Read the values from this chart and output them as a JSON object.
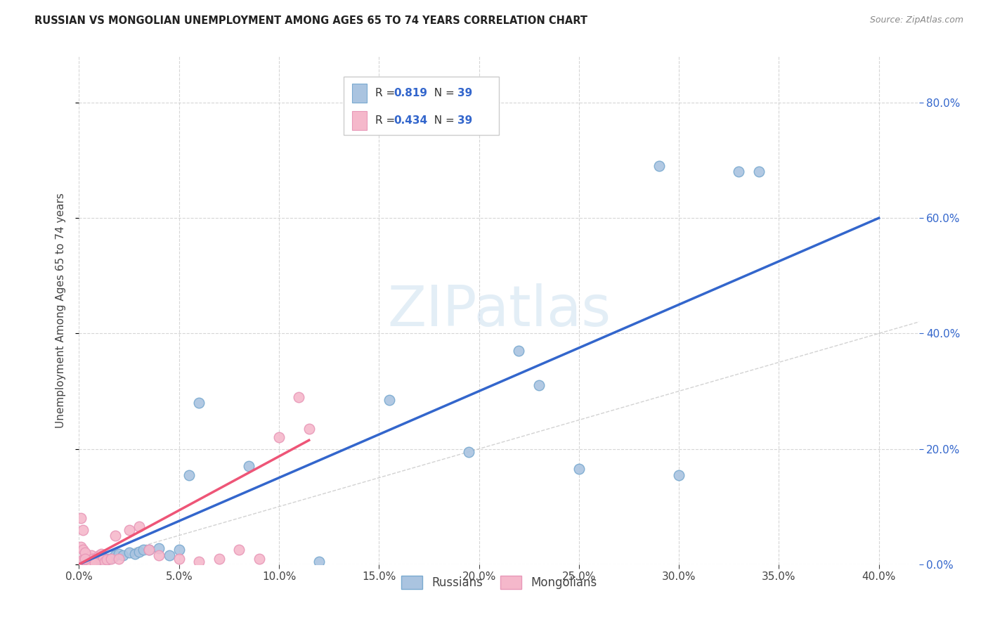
{
  "title": "RUSSIAN VS MONGOLIAN UNEMPLOYMENT AMONG AGES 65 TO 74 YEARS CORRELATION CHART",
  "source": "Source: ZipAtlas.com",
  "ylabel": "Unemployment Among Ages 65 to 74 years",
  "xlim": [
    0.0,
    0.42
  ],
  "ylim": [
    0.0,
    0.88
  ],
  "xticks": [
    0.0,
    0.05,
    0.1,
    0.15,
    0.2,
    0.25,
    0.3,
    0.35,
    0.4
  ],
  "yticks": [
    0.0,
    0.2,
    0.4,
    0.6,
    0.8
  ],
  "background_color": "#ffffff",
  "grid_color": "#cccccc",
  "watermark_text": "ZIPatlas",
  "legend_r_russian": "0.819",
  "legend_n_russian": "39",
  "legend_r_mongolian": "0.434",
  "legend_n_mongolian": "39",
  "russian_face_color": "#aac4e0",
  "russian_edge_color": "#7aaad0",
  "mongolian_face_color": "#f5b8cb",
  "mongolian_edge_color": "#e898b8",
  "russian_line_color": "#3366cc",
  "mongolian_line_color": "#ee5577",
  "diagonal_color": "#c0c0c0",
  "tick_color_blue": "#3366cc",
  "tick_color_dark": "#444444",
  "russian_scatter_x": [
    0.001,
    0.002,
    0.003,
    0.004,
    0.005,
    0.006,
    0.007,
    0.008,
    0.009,
    0.01,
    0.011,
    0.012,
    0.013,
    0.015,
    0.017,
    0.018,
    0.02,
    0.022,
    0.025,
    0.028,
    0.03,
    0.032,
    0.035,
    0.04,
    0.045,
    0.05,
    0.055,
    0.06,
    0.085,
    0.12,
    0.155,
    0.195,
    0.22,
    0.23,
    0.25,
    0.29,
    0.3,
    0.33,
    0.34
  ],
  "russian_scatter_y": [
    0.004,
    0.003,
    0.004,
    0.005,
    0.006,
    0.005,
    0.008,
    0.007,
    0.01,
    0.009,
    0.01,
    0.008,
    0.01,
    0.01,
    0.012,
    0.015,
    0.018,
    0.015,
    0.02,
    0.018,
    0.022,
    0.025,
    0.025,
    0.028,
    0.015,
    0.025,
    0.155,
    0.28,
    0.17,
    0.005,
    0.285,
    0.195,
    0.37,
    0.31,
    0.165,
    0.69,
    0.155,
    0.68,
    0.68
  ],
  "mongolian_scatter_x": [
    0.001,
    0.002,
    0.003,
    0.004,
    0.005,
    0.006,
    0.007,
    0.008,
    0.009,
    0.01,
    0.011,
    0.012,
    0.013,
    0.014,
    0.016,
    0.018,
    0.02,
    0.025,
    0.03,
    0.035,
    0.04,
    0.05,
    0.06,
    0.07,
    0.08,
    0.09,
    0.1,
    0.11,
    0.115,
    0.001,
    0.002,
    0.003,
    0.004,
    0.005,
    0.006,
    0.008,
    0.001,
    0.002,
    0.003
  ],
  "mongolian_scatter_y": [
    0.005,
    0.008,
    0.01,
    0.007,
    0.012,
    0.015,
    0.01,
    0.008,
    0.012,
    0.015,
    0.018,
    0.01,
    0.005,
    0.008,
    0.01,
    0.05,
    0.01,
    0.06,
    0.065,
    0.025,
    0.015,
    0.01,
    0.005,
    0.01,
    0.025,
    0.01,
    0.22,
    0.29,
    0.235,
    0.03,
    0.025,
    0.02,
    0.005,
    0.003,
    0.002,
    0.002,
    0.08,
    0.06,
    0.01
  ],
  "russian_line_x": [
    0.0,
    0.4
  ],
  "russian_line_y": [
    0.0,
    0.6
  ],
  "mongolian_line_x": [
    0.0,
    0.115
  ],
  "mongolian_line_y": [
    0.0,
    0.215
  ]
}
